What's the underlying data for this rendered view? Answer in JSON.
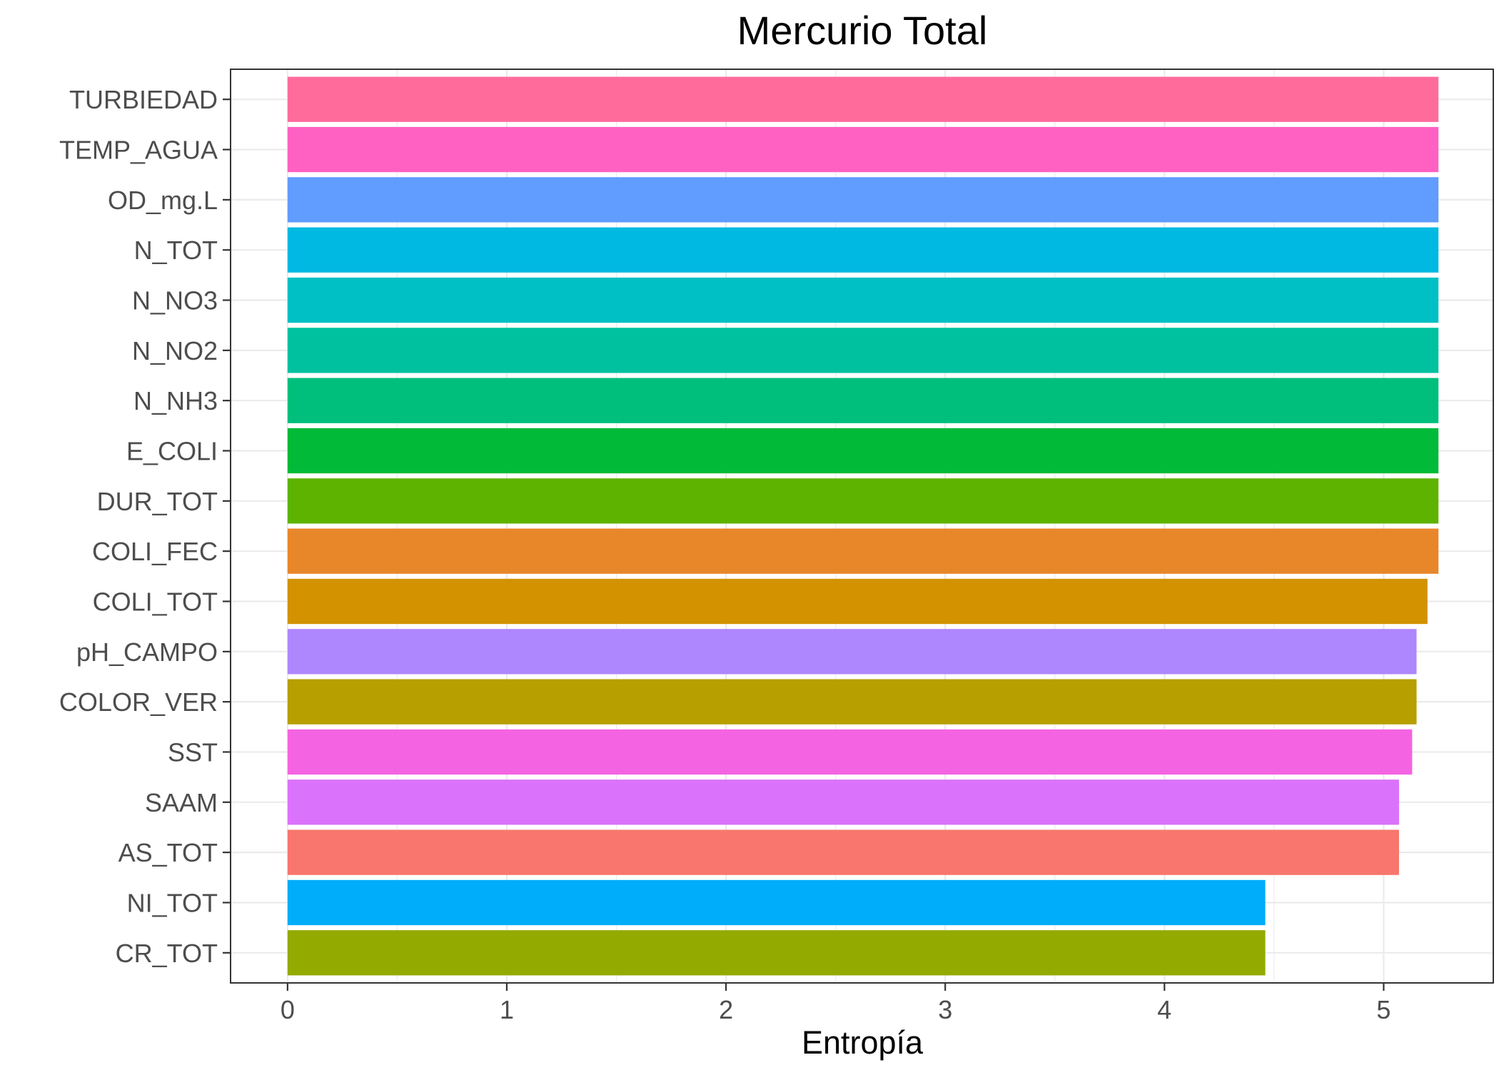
{
  "chart_data": {
    "type": "bar",
    "orientation": "horizontal",
    "title": "Mercurio Total",
    "xlabel": "Entropía",
    "ylabel": "",
    "xlim": [
      -0.26,
      5.5
    ],
    "xticks": [
      0,
      1,
      2,
      3,
      4,
      5
    ],
    "grid": true,
    "legend": "none",
    "categories": [
      "TURBIEDAD",
      "TEMP_AGUA",
      "OD_mg.L",
      "N_TOT",
      "N_NO3",
      "N_NO2",
      "N_NH3",
      "E_COLI",
      "DUR_TOT",
      "COLI_FEC",
      "COLI_TOT",
      "pH_CAMPO",
      "COLOR_VER",
      "SST",
      "SAAM",
      "AS_TOT",
      "NI_TOT",
      "CR_TOT"
    ],
    "values": [
      5.25,
      5.25,
      5.25,
      5.25,
      5.25,
      5.25,
      5.25,
      5.25,
      5.25,
      5.25,
      5.2,
      5.15,
      5.15,
      5.13,
      5.07,
      5.07,
      4.46,
      4.46
    ],
    "colors": [
      "#FF6C9C",
      "#FF61C3",
      "#619CFF",
      "#00B9E3",
      "#00C0C5",
      "#00C19F",
      "#00BF7D",
      "#00BA38",
      "#5EB300",
      "#E8862A",
      "#D39200",
      "#AE87FF",
      "#B79F00",
      "#F464E2",
      "#DB72FB",
      "#F8766D",
      "#00ADFA",
      "#93AA00"
    ]
  }
}
